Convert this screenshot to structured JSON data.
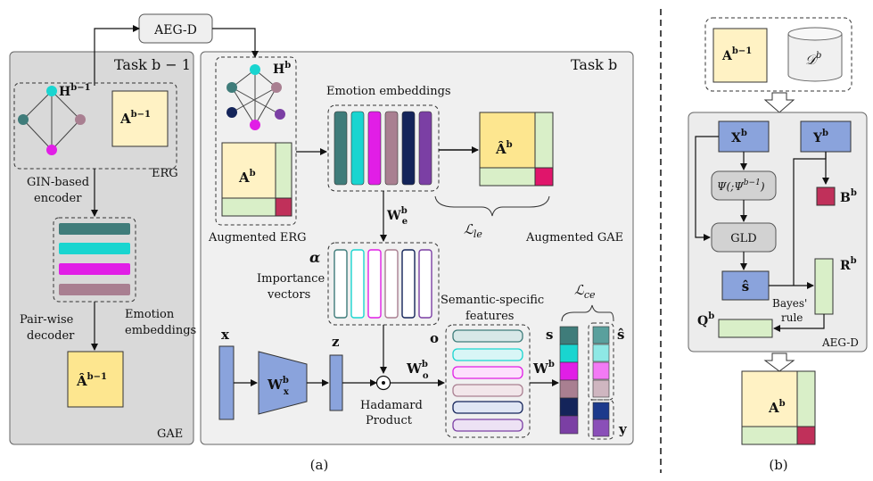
{
  "panel_a": {
    "aeg_d_box": "AEG-D",
    "task_prev": "Task b − 1",
    "task_cur": "Task b",
    "h_prev": "H",
    "h_prev_sup": "b−1",
    "a_prev": "A",
    "a_prev_sup": "b−1",
    "erg": "ERG",
    "gin_line1": "GIN-based",
    "gin_line2": "encoder",
    "pairwise_line1": "Pair-wise",
    "pairwise_line2": "decoder",
    "emo_emb_line1": "Emotion",
    "emo_emb_line2": "embeddings",
    "ahat_prev": "Â",
    "ahat_prev_sup": "b−1",
    "gae": "GAE",
    "h_cur": "H",
    "h_cur_sup": "b",
    "a_cur": "A",
    "a_cur_sup": "b",
    "aug_erg": "Augmented ERG",
    "emotion_embeddings": "Emotion embeddings",
    "ahat_cur": "Â",
    "ahat_cur_sup": "b",
    "l_le": "ℒ",
    "l_le_sub": "le",
    "aug_gae": "Augmented  GAE",
    "we": "W",
    "we_sup": "b",
    "we_sub": "e",
    "alpha": "α",
    "importance_line1": "Importance",
    "importance_line2": "vectors",
    "x": "x",
    "wx": "W",
    "wx_sup": "b",
    "wx_sub": "x",
    "z": "z",
    "hadamard_line1": "Hadamard",
    "hadamard_line2": "Product",
    "o": "o",
    "wo": "W",
    "wo_sup": "b",
    "wo_sub": "o",
    "sem_line1": "Semantic-specific",
    "sem_line2": "features",
    "wb": "W",
    "wb_sup": "b",
    "l_ce": "ℒ",
    "l_ce_sub": "ce",
    "s": "s",
    "s_hat": "ŝ",
    "y": "y",
    "caption": "(a)"
  },
  "panel_b": {
    "a_prev": "A",
    "a_prev_sup": "b−1",
    "d": "𝒟",
    "d_sup": "b",
    "xb": "X",
    "xb_sup": "b",
    "yb": "Y",
    "yb_sup": "b",
    "psi": "Ψ(;Ψ",
    "psi_sup": "b−1",
    "psi_close": ")",
    "bb": "B",
    "bb_sup": "b",
    "gld": "GLD",
    "s_hat": "ŝ",
    "rb": "R",
    "rb_sup": "b",
    "bayes_line1": "Bayes'",
    "bayes_line2": "rule",
    "qb": "Q",
    "qb_sup": "b",
    "aeg_d": "AEG-D",
    "a_out": "A",
    "a_out_sup": "b",
    "caption": "(b)"
  },
  "colors": {
    "teal": "#3f7c7a",
    "cyan": "#19d5d0",
    "magenta": "#e11ee6",
    "mauve": "#a97f91",
    "navy": "#14245a",
    "purple": "#7b3fa4",
    "adj_fill": "#fff2c4",
    "adj_side": "#d9efc8",
    "adj_corner": "#c0305a",
    "x_blue": "#8aa3dc",
    "red": "#d8262c"
  }
}
